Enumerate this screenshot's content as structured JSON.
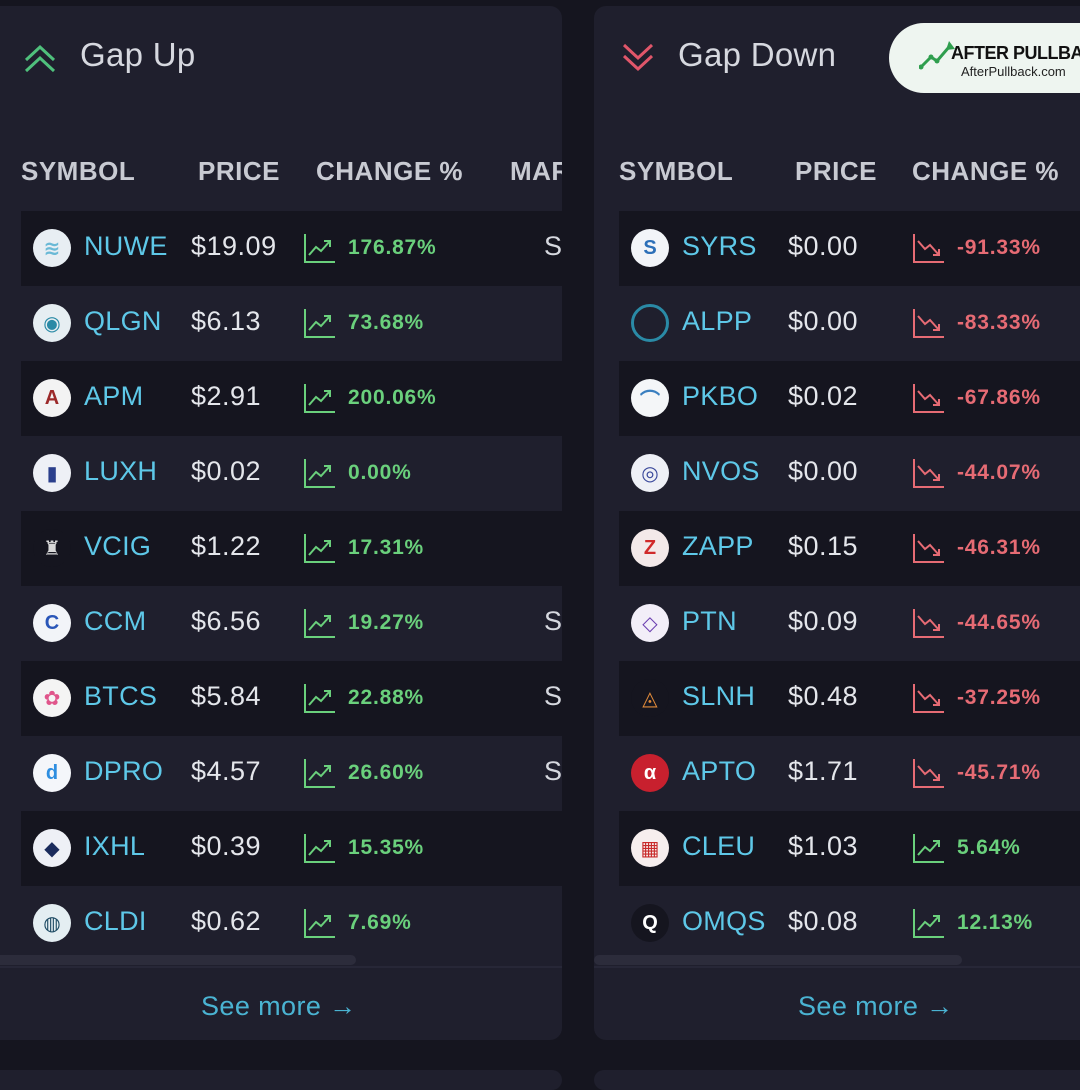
{
  "gap_up": {
    "title": "Gap Up",
    "headers": {
      "symbol": "SYMBOL",
      "price": "PRICE",
      "change": "CHANGE %",
      "market_cut": "MAR"
    },
    "rows": [
      {
        "symbol": "NUWE",
        "price": "$19.09",
        "change": "176.87%",
        "direction": "up",
        "cut_text": "S"
      },
      {
        "symbol": "QLGN",
        "price": "$6.13",
        "change": "73.68%",
        "direction": "up",
        "cut_text": ""
      },
      {
        "symbol": "APM",
        "price": "$2.91",
        "change": "200.06%",
        "direction": "up",
        "cut_text": ""
      },
      {
        "symbol": "LUXH",
        "price": "$0.02",
        "change": "0.00%",
        "direction": "up",
        "cut_text": ""
      },
      {
        "symbol": "VCIG",
        "price": "$1.22",
        "change": "17.31%",
        "direction": "up",
        "cut_text": ""
      },
      {
        "symbol": "CCM",
        "price": "$6.56",
        "change": "19.27%",
        "direction": "up",
        "cut_text": "S"
      },
      {
        "symbol": "BTCS",
        "price": "$5.84",
        "change": "22.88%",
        "direction": "up",
        "cut_text": "S"
      },
      {
        "symbol": "DPRO",
        "price": "$4.57",
        "change": "26.60%",
        "direction": "up",
        "cut_text": "S"
      },
      {
        "symbol": "IXHL",
        "price": "$0.39",
        "change": "15.35%",
        "direction": "up",
        "cut_text": ""
      },
      {
        "symbol": "CLDI",
        "price": "$0.62",
        "change": "7.69%",
        "direction": "up",
        "cut_text": ""
      }
    ],
    "see_more": "See more →"
  },
  "gap_down": {
    "title": "Gap Down",
    "headers": {
      "symbol": "SYMBOL",
      "price": "PRICE",
      "change": "CHANGE %"
    },
    "rows": [
      {
        "symbol": "SYRS",
        "price": "$0.00",
        "change": "-91.33%",
        "direction": "down"
      },
      {
        "symbol": "ALPP",
        "price": "$0.00",
        "change": "-83.33%",
        "direction": "down"
      },
      {
        "symbol": "PKBO",
        "price": "$0.02",
        "change": "-67.86%",
        "direction": "down"
      },
      {
        "symbol": "NVOS",
        "price": "$0.00",
        "change": "-44.07%",
        "direction": "down"
      },
      {
        "symbol": "ZAPP",
        "price": "$0.15",
        "change": "-46.31%",
        "direction": "down"
      },
      {
        "symbol": "PTN",
        "price": "$0.09",
        "change": "-44.65%",
        "direction": "down"
      },
      {
        "symbol": "SLNH",
        "price": "$0.48",
        "change": "-37.25%",
        "direction": "down"
      },
      {
        "symbol": "APTO",
        "price": "$1.71",
        "change": "-45.71%",
        "direction": "down"
      },
      {
        "symbol": "CLEU",
        "price": "$1.03",
        "change": "5.64%",
        "direction": "up"
      },
      {
        "symbol": "OMQS",
        "price": "$0.08",
        "change": "12.13%",
        "direction": "up"
      }
    ],
    "see_more": "See more →"
  },
  "watermark": {
    "brand": "AFTER PULLBACK",
    "url": "AfterPullback.com"
  },
  "colors": {
    "up": "#6ad07c",
    "down": "#e66b74",
    "symbol": "#5ec8e8",
    "link": "#4ab3d2"
  },
  "icons": {
    "gap_up": "double-chevron-up-icon",
    "gap_down": "double-chevron-down-icon",
    "trend_up": "trend-up-icon",
    "trend_down": "trend-down-icon"
  }
}
